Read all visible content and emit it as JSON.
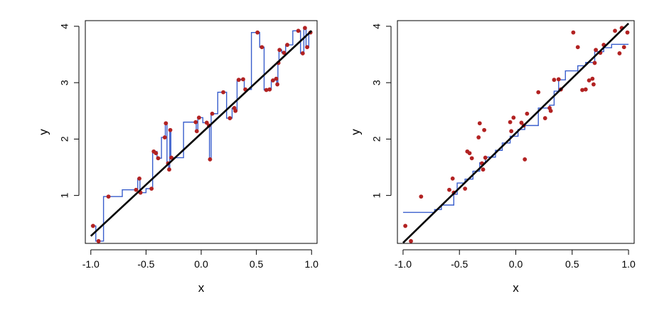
{
  "chart_data": [
    {
      "type": "scatter",
      "xlabel": "x",
      "ylabel": "y",
      "xlim": [
        -1.05,
        1.05
      ],
      "ylim": [
        0.15,
        4.1
      ],
      "xticks": [
        -1.0,
        -0.5,
        0.0,
        0.5,
        1.0
      ],
      "xtick_labels": [
        "-1.0",
        "-0.5",
        "0.0",
        "0.5",
        "1.0"
      ],
      "yticks": [
        1,
        2,
        3,
        4
      ],
      "ytick_labels": [
        "1",
        "2",
        "3",
        "4"
      ],
      "grid": false,
      "colors": {
        "points": "#b22222",
        "step_fit": "#3a5fcd",
        "true_line": "#000000"
      },
      "points": [
        [
          -0.98,
          0.46
        ],
        [
          -0.93,
          0.19
        ],
        [
          -0.84,
          0.98
        ],
        [
          -0.59,
          1.1
        ],
        [
          -0.56,
          1.3
        ],
        [
          -0.55,
          1.05
        ],
        [
          -0.45,
          1.12
        ],
        [
          -0.43,
          1.78
        ],
        [
          -0.41,
          1.75
        ],
        [
          -0.39,
          1.66
        ],
        [
          -0.33,
          2.03
        ],
        [
          -0.32,
          2.28
        ],
        [
          -0.3,
          1.57
        ],
        [
          -0.29,
          1.46
        ],
        [
          -0.28,
          2.16
        ],
        [
          -0.27,
          1.67
        ],
        [
          -0.05,
          2.3
        ],
        [
          -0.04,
          2.14
        ],
        [
          -0.02,
          2.38
        ],
        [
          0.05,
          2.29
        ],
        [
          0.07,
          2.24
        ],
        [
          0.08,
          1.64
        ],
        [
          0.1,
          2.45
        ],
        [
          0.2,
          2.83
        ],
        [
          0.26,
          2.37
        ],
        [
          0.3,
          2.55
        ],
        [
          0.31,
          2.5
        ],
        [
          0.34,
          3.05
        ],
        [
          0.38,
          3.06
        ],
        [
          0.4,
          2.88
        ],
        [
          0.51,
          3.89
        ],
        [
          0.55,
          3.63
        ],
        [
          0.59,
          2.87
        ],
        [
          0.62,
          2.88
        ],
        [
          0.65,
          3.04
        ],
        [
          0.68,
          3.07
        ],
        [
          0.69,
          2.97
        ],
        [
          0.7,
          3.35
        ],
        [
          0.71,
          3.58
        ],
        [
          0.75,
          3.53
        ],
        [
          0.78,
          3.67
        ],
        [
          0.88,
          3.92
        ],
        [
          0.92,
          3.52
        ],
        [
          0.94,
          3.97
        ],
        [
          0.96,
          3.63
        ],
        [
          0.99,
          3.89
        ]
      ],
      "step_fit": [
        [
          -1.0,
          0.46
        ],
        [
          -0.955,
          0.19
        ],
        [
          -0.885,
          0.98
        ],
        [
          -0.715,
          1.1
        ],
        [
          -0.575,
          1.3
        ],
        [
          -0.555,
          1.05
        ],
        [
          -0.5,
          1.12
        ],
        [
          -0.44,
          1.78
        ],
        [
          -0.4,
          1.66
        ],
        [
          -0.36,
          2.03
        ],
        [
          -0.325,
          2.28
        ],
        [
          -0.31,
          1.57
        ],
        [
          -0.295,
          1.46
        ],
        [
          -0.285,
          2.16
        ],
        [
          -0.275,
          1.67
        ],
        [
          -0.16,
          2.3
        ],
        [
          -0.045,
          2.14
        ],
        [
          -0.03,
          2.38
        ],
        [
          0.015,
          2.29
        ],
        [
          0.06,
          2.24
        ],
        [
          0.075,
          1.64
        ],
        [
          0.09,
          2.45
        ],
        [
          0.15,
          2.83
        ],
        [
          0.23,
          2.37
        ],
        [
          0.28,
          2.55
        ],
        [
          0.305,
          2.5
        ],
        [
          0.325,
          3.05
        ],
        [
          0.36,
          3.06
        ],
        [
          0.39,
          2.88
        ],
        [
          0.455,
          3.89
        ],
        [
          0.53,
          3.63
        ],
        [
          0.57,
          2.87
        ],
        [
          0.605,
          2.88
        ],
        [
          0.635,
          3.04
        ],
        [
          0.665,
          3.07
        ],
        [
          0.685,
          2.97
        ],
        [
          0.695,
          3.35
        ],
        [
          0.705,
          3.58
        ],
        [
          0.73,
          3.53
        ],
        [
          0.765,
          3.67
        ],
        [
          0.83,
          3.92
        ],
        [
          0.9,
          3.52
        ],
        [
          0.93,
          3.97
        ],
        [
          0.95,
          3.63
        ],
        [
          0.975,
          3.89
        ],
        [
          1.0,
          3.89
        ]
      ],
      "true_line": [
        [
          -1.0,
          0.28
        ],
        [
          1.0,
          3.92
        ]
      ]
    },
    {
      "type": "scatter",
      "xlabel": "x",
      "ylabel": "y",
      "xlim": [
        -1.05,
        1.05
      ],
      "ylim": [
        0.15,
        4.1
      ],
      "xticks": [
        -1.0,
        -0.5,
        0.0,
        0.5,
        1.0
      ],
      "xtick_labels": [
        "-1.0",
        "-0.5",
        "0.0",
        "0.5",
        "1.0"
      ],
      "yticks": [
        1,
        2,
        3,
        4
      ],
      "ytick_labels": [
        "1",
        "2",
        "3",
        "4"
      ],
      "grid": false,
      "colors": {
        "points": "#b22222",
        "step_fit": "#3a5fcd",
        "true_line": "#000000"
      },
      "points": [
        [
          -0.98,
          0.46
        ],
        [
          -0.93,
          0.19
        ],
        [
          -0.84,
          0.98
        ],
        [
          -0.59,
          1.1
        ],
        [
          -0.56,
          1.3
        ],
        [
          -0.55,
          1.05
        ],
        [
          -0.45,
          1.12
        ],
        [
          -0.43,
          1.78
        ],
        [
          -0.41,
          1.75
        ],
        [
          -0.39,
          1.66
        ],
        [
          -0.33,
          2.03
        ],
        [
          -0.32,
          2.28
        ],
        [
          -0.3,
          1.57
        ],
        [
          -0.29,
          1.46
        ],
        [
          -0.28,
          2.16
        ],
        [
          -0.27,
          1.67
        ],
        [
          -0.05,
          2.3
        ],
        [
          -0.04,
          2.14
        ],
        [
          -0.02,
          2.38
        ],
        [
          0.05,
          2.29
        ],
        [
          0.07,
          2.24
        ],
        [
          0.08,
          1.64
        ],
        [
          0.1,
          2.45
        ],
        [
          0.2,
          2.83
        ],
        [
          0.26,
          2.37
        ],
        [
          0.3,
          2.55
        ],
        [
          0.31,
          2.5
        ],
        [
          0.34,
          3.05
        ],
        [
          0.38,
          3.06
        ],
        [
          0.4,
          2.88
        ],
        [
          0.51,
          3.89
        ],
        [
          0.55,
          3.63
        ],
        [
          0.59,
          2.87
        ],
        [
          0.62,
          2.88
        ],
        [
          0.65,
          3.04
        ],
        [
          0.68,
          3.07
        ],
        [
          0.69,
          2.97
        ],
        [
          0.7,
          3.35
        ],
        [
          0.71,
          3.58
        ],
        [
          0.75,
          3.53
        ],
        [
          0.78,
          3.67
        ],
        [
          0.88,
          3.92
        ],
        [
          0.92,
          3.52
        ],
        [
          0.94,
          3.97
        ],
        [
          0.96,
          3.63
        ],
        [
          0.99,
          3.89
        ]
      ],
      "step_fit": [
        [
          -1.0,
          0.7
        ],
        [
          -0.72,
          0.75
        ],
        [
          -0.66,
          0.83
        ],
        [
          -0.55,
          1.02
        ],
        [
          -0.52,
          1.22
        ],
        [
          -0.45,
          1.29
        ],
        [
          -0.38,
          1.43
        ],
        [
          -0.32,
          1.58
        ],
        [
          -0.27,
          1.68
        ],
        [
          -0.18,
          1.8
        ],
        [
          -0.12,
          1.93
        ],
        [
          -0.05,
          2.05
        ],
        [
          0.02,
          2.17
        ],
        [
          0.08,
          2.24
        ],
        [
          0.2,
          2.55
        ],
        [
          0.3,
          2.6
        ],
        [
          0.34,
          2.85
        ],
        [
          0.38,
          3.05
        ],
        [
          0.44,
          3.21
        ],
        [
          0.55,
          3.3
        ],
        [
          0.62,
          3.36
        ],
        [
          0.7,
          3.55
        ],
        [
          0.78,
          3.62
        ],
        [
          0.85,
          3.68
        ],
        [
          1.0,
          3.68
        ]
      ],
      "true_line": [
        [
          -1.0,
          0.16
        ],
        [
          1.0,
          4.05
        ]
      ]
    }
  ]
}
